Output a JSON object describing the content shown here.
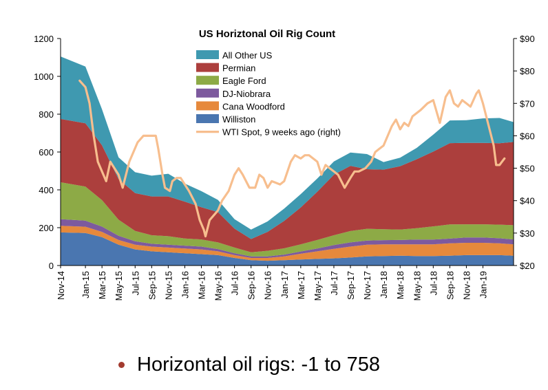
{
  "chart_data": {
    "type": "area",
    "title": "US Horiztonal Oil Rig Count",
    "ylim": [
      0,
      1200
    ],
    "y_ticks": [
      "0",
      "200",
      "400",
      "600",
      "800",
      "1000",
      "1200"
    ],
    "y2lim": [
      20,
      90
    ],
    "y2_ticks": [
      "$20",
      "$30",
      "$40",
      "$50",
      "$60",
      "$70",
      "$80",
      "$90"
    ],
    "x_labels": [
      "Nov-14",
      "Jan-15",
      "Mar-15",
      "May-15",
      "Jul-15",
      "Sep-15",
      "Nov-15",
      "Jan-16",
      "Mar-16",
      "May-16",
      "Jul-16",
      "Sep-16",
      "Nov-16",
      "Jan-17",
      "Mar-17",
      "May-17",
      "Jul-17",
      "Sep-17",
      "Nov-17",
      "Jan-18",
      "Mar-18",
      "May-18",
      "Jul-18",
      "Sep-18",
      "Nov-18",
      "Jan-19"
    ],
    "x_months": [
      0,
      3,
      5,
      7,
      9,
      11,
      13,
      15,
      17,
      19,
      21,
      23,
      25,
      27,
      29,
      31,
      33,
      35,
      37,
      39,
      41,
      43,
      45,
      47,
      49,
      51,
      53,
      54.7
    ],
    "stacked_series": [
      {
        "name": "Williston",
        "color": "#4a76b0",
        "values": [
          175,
          172,
          150,
          110,
          85,
          75,
          70,
          65,
          60,
          55,
          40,
          28,
          25,
          28,
          32,
          35,
          38,
          42,
          48,
          50,
          52,
          50,
          50,
          52,
          55,
          55,
          55,
          52
        ]
      },
      {
        "name": "Cana Woodford",
        "color": "#e6893c",
        "values": [
          35,
          33,
          28,
          25,
          25,
          25,
          25,
          25,
          25,
          20,
          15,
          12,
          15,
          20,
          30,
          40,
          50,
          58,
          62,
          62,
          60,
          62,
          62,
          65,
          65,
          65,
          62,
          60
        ]
      },
      {
        "name": "DJ-Niobrara",
        "color": "#7d5a9e",
        "values": [
          35,
          32,
          28,
          22,
          18,
          15,
          15,
          15,
          15,
          12,
          10,
          8,
          8,
          10,
          12,
          15,
          20,
          22,
          22,
          22,
          23,
          25,
          25,
          25,
          28,
          28,
          27,
          26
        ]
      },
      {
        "name": "Eagle Ford",
        "color": "#8daa46",
        "values": [
          195,
          180,
          140,
          85,
          55,
          45,
          45,
          38,
          38,
          35,
          30,
          22,
          30,
          33,
          38,
          45,
          52,
          60,
          62,
          58,
          55,
          60,
          70,
          75,
          70,
          70,
          72,
          75
        ]
      },
      {
        "name": "Permian",
        "color": "#ac3f3d",
        "values": [
          335,
          335,
          290,
          215,
          200,
          205,
          210,
          195,
          170,
          160,
          100,
          70,
          100,
          145,
          195,
          255,
          320,
          345,
          315,
          315,
          335,
          365,
          395,
          430,
          430,
          430,
          430,
          440
        ]
      },
      {
        "name": "All Other US",
        "color": "#3f99b0",
        "values": [
          330,
          300,
          190,
          115,
          110,
          110,
          120,
          95,
          85,
          65,
          50,
          50,
          55,
          65,
          70,
          70,
          70,
          70,
          80,
          40,
          45,
          60,
          90,
          120,
          120,
          130,
          134,
          105
        ]
      }
    ],
    "line_series": {
      "name": "WTI Spot, 9 weeks ago (right)",
      "color": "#f7be8e",
      "axis": "right",
      "points": [
        [
          2.3,
          77
        ],
        [
          3.0,
          75
        ],
        [
          3.5,
          70
        ],
        [
          4.0,
          60
        ],
        [
          4.5,
          52
        ],
        [
          5.5,
          46
        ],
        [
          6.0,
          52
        ],
        [
          7.0,
          48
        ],
        [
          7.5,
          44
        ],
        [
          8.3,
          52
        ],
        [
          9.3,
          58
        ],
        [
          10.0,
          60
        ],
        [
          11.0,
          60
        ],
        [
          11.5,
          60
        ],
        [
          11.8,
          56
        ],
        [
          12.3,
          48
        ],
        [
          12.6,
          44
        ],
        [
          13.2,
          43
        ],
        [
          13.5,
          46
        ],
        [
          14.0,
          47
        ],
        [
          14.5,
          47
        ],
        [
          15.0,
          45
        ],
        [
          15.5,
          43
        ],
        [
          16.3,
          39
        ],
        [
          16.8,
          34
        ],
        [
          17.3,
          31
        ],
        [
          17.5,
          29
        ],
        [
          18.0,
          34
        ],
        [
          19.0,
          37
        ],
        [
          19.5,
          40
        ],
        [
          20.3,
          43
        ],
        [
          21.0,
          48
        ],
        [
          21.5,
          50
        ],
        [
          22.0,
          48
        ],
        [
          22.8,
          44
        ],
        [
          23.5,
          44
        ],
        [
          24.0,
          48
        ],
        [
          24.5,
          47
        ],
        [
          25.0,
          44
        ],
        [
          25.5,
          46
        ],
        [
          26.5,
          45
        ],
        [
          27.0,
          46
        ],
        [
          27.8,
          52
        ],
        [
          28.3,
          54
        ],
        [
          29.0,
          53
        ],
        [
          29.5,
          54
        ],
        [
          30.0,
          54
        ],
        [
          31.0,
          52
        ],
        [
          31.5,
          48
        ],
        [
          32.0,
          51
        ],
        [
          32.5,
          50
        ],
        [
          33.0,
          49
        ],
        [
          33.5,
          48
        ],
        [
          34.3,
          44
        ],
        [
          35.0,
          47
        ],
        [
          35.5,
          49
        ],
        [
          36.0,
          49
        ],
        [
          36.8,
          50
        ],
        [
          37.5,
          52
        ],
        [
          38.0,
          55
        ],
        [
          38.5,
          56
        ],
        [
          39.0,
          57
        ],
        [
          39.5,
          60
        ],
        [
          40.0,
          63
        ],
        [
          40.5,
          65
        ],
        [
          41.0,
          62
        ],
        [
          41.5,
          64
        ],
        [
          42.0,
          63
        ],
        [
          42.5,
          66
        ],
        [
          43.5,
          68
        ],
        [
          44.3,
          70
        ],
        [
          45.0,
          71
        ],
        [
          45.8,
          64
        ],
        [
          46.5,
          72
        ],
        [
          47.0,
          74
        ],
        [
          47.5,
          70
        ],
        [
          48.0,
          69
        ],
        [
          48.5,
          71
        ],
        [
          49.0,
          70
        ],
        [
          49.5,
          69
        ],
        [
          50.2,
          73
        ],
        [
          50.5,
          74
        ],
        [
          51.0,
          70
        ],
        [
          51.5,
          65
        ],
        [
          52.0,
          60
        ],
        [
          52.3,
          57
        ],
        [
          52.6,
          51
        ],
        [
          53.0,
          51
        ],
        [
          53.3,
          52
        ],
        [
          53.6,
          53
        ]
      ]
    },
    "legend_placement": "top-center",
    "grid": false
  },
  "footer": {
    "bullet_text": "Horizontal oil rigs: -1 to 758"
  }
}
